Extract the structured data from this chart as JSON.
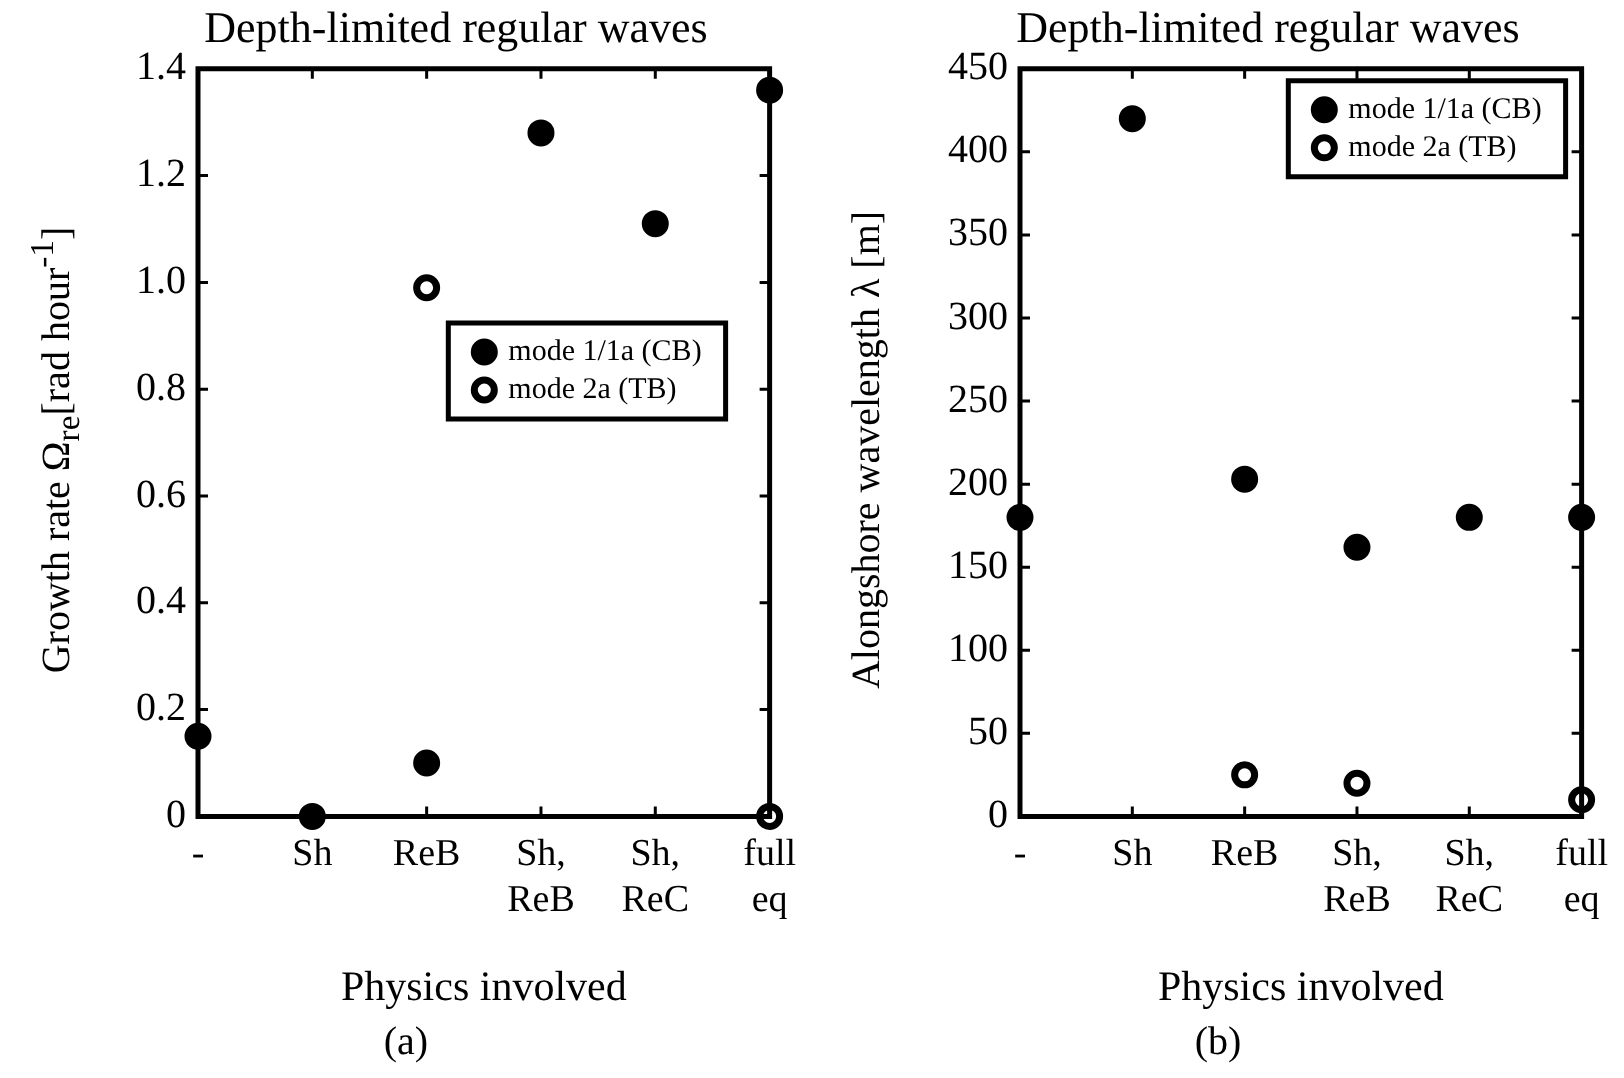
{
  "chart_data": [
    {
      "type": "scatter",
      "title": "Depth-limited regular waves",
      "xlabel": "Physics involved",
      "ylabel": "Growth rate Ω$_{re}$[rad hour$^{-1}$]",
      "categories": [
        "-",
        "Sh",
        "ReB",
        "Sh,\nReB",
        "Sh,\nReC",
        "full\neq"
      ],
      "series": [
        {
          "name": "mode 1/1a (CB)",
          "color": "#000000",
          "values": [
            0.15,
            0.0,
            0.1,
            1.28,
            1.11,
            1.36
          ]
        },
        {
          "name": "mode 2a (TB)",
          "color": "#ffffff",
          "values": [
            null,
            null,
            0.99,
            null,
            null,
            0.0
          ]
        }
      ],
      "ylim": [
        0,
        1.4
      ],
      "yticks": [
        {
          "value": 0,
          "label": "0"
        },
        0.2,
        0.4,
        0.6,
        0.8,
        {
          "value": 1,
          "label": "1.0"
        },
        1.2,
        1.4
      ],
      "grid": false,
      "legend": "right",
      "marker": "circle",
      "annotations": [
        "(a)"
      ]
    },
    {
      "type": "scatter",
      "title": "Depth-limited regular waves",
      "xlabel": "Physics involved",
      "ylabel": "Alongshore wavelength λ  [m]",
      "categories": [
        "-",
        "Sh",
        "ReB",
        "Sh,\nReB",
        "Sh,\nReC",
        "full\neq"
      ],
      "series": [
        {
          "name": "mode 1/1a (CB)",
          "color": "#000000",
          "values": [
            180,
            420,
            203,
            162,
            180,
            180
          ]
        },
        {
          "name": "mode 2a (TB)",
          "color": "#ffffff",
          "values": [
            null,
            null,
            25,
            20,
            null,
            10
          ]
        }
      ],
      "ylim": [
        0,
        450
      ],
      "yticks": [
        0,
        50,
        100,
        150,
        200,
        250,
        300,
        350,
        400,
        450
      ],
      "grid": false,
      "legend": "top right",
      "marker": "circle",
      "annotations": [
        "(b)"
      ]
    }
  ]
}
